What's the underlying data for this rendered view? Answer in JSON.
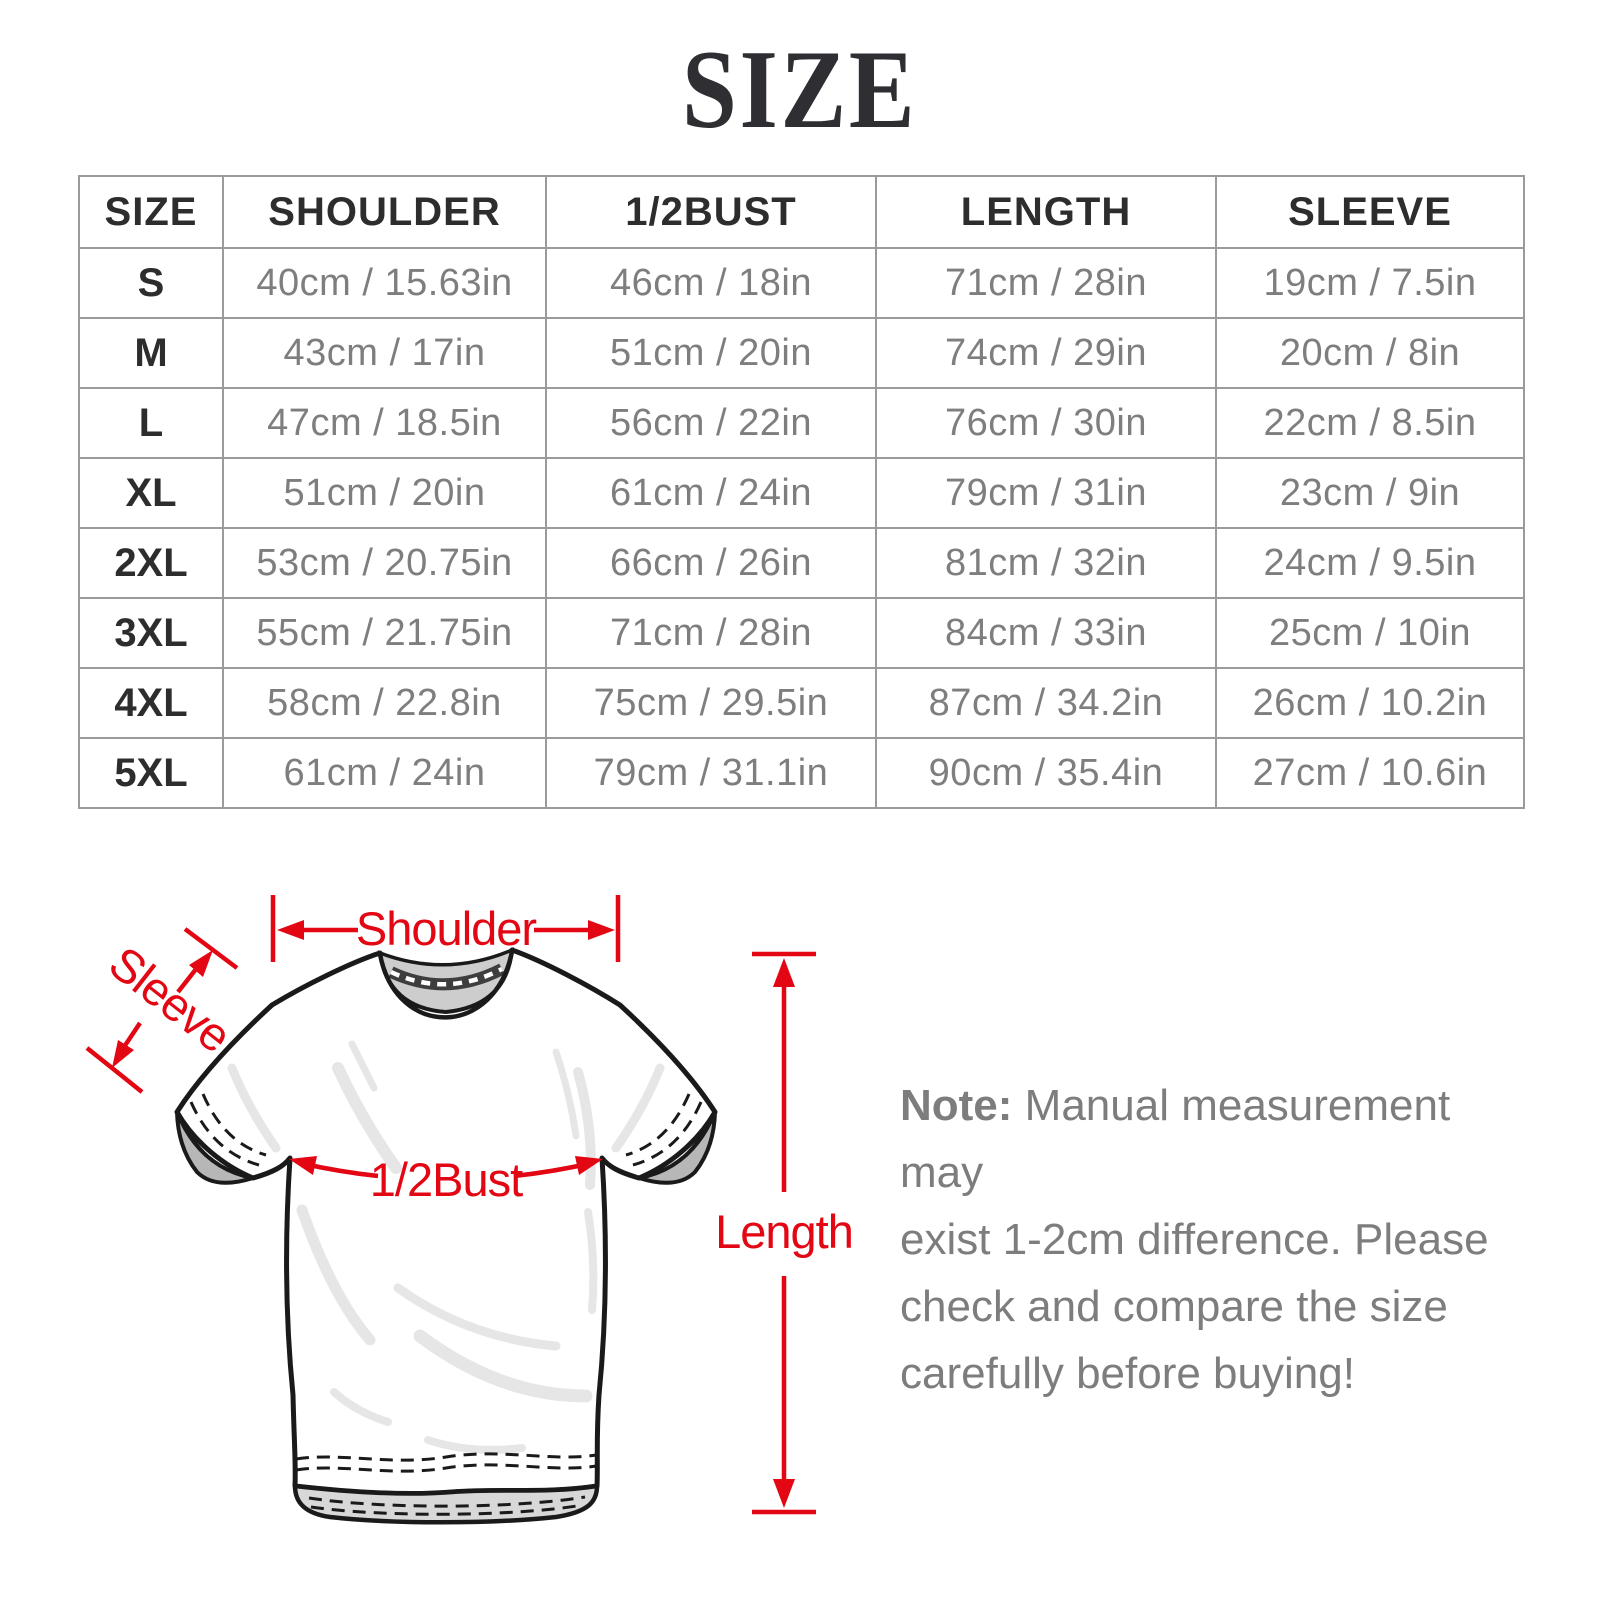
{
  "title": "SIZE",
  "palette": {
    "accent_red": "#e30613",
    "table_border": "#9b9b9b",
    "header_text": "#2d2d2d",
    "cell_text": "#7e7e7e",
    "note_text": "#7d7d7d",
    "shirt_outline": "#1a1a1a",
    "collar_gray": "#cdcdcd",
    "cuff_gray": "#b7b7b7",
    "hem_gray": "#d8d8d8"
  },
  "table": {
    "columns": [
      "SIZE",
      "SHOULDER",
      "1/2BUST",
      "LENGTH",
      "SLEEVE"
    ],
    "rows": [
      {
        "size": "S",
        "values": [
          "40cm / 15.63in",
          "46cm / 18in",
          "71cm / 28in",
          "19cm / 7.5in"
        ]
      },
      {
        "size": "M",
        "values": [
          "43cm / 17in",
          "51cm / 20in",
          "74cm / 29in",
          "20cm / 8in"
        ]
      },
      {
        "size": "L",
        "values": [
          "47cm / 18.5in",
          "56cm / 22in",
          "76cm / 30in",
          "22cm / 8.5in"
        ]
      },
      {
        "size": "XL",
        "values": [
          "51cm / 20in",
          "61cm / 24in",
          "79cm / 31in",
          "23cm / 9in"
        ]
      },
      {
        "size": "2XL",
        "values": [
          "53cm / 20.75in",
          "66cm / 26in",
          "81cm / 32in",
          "24cm / 9.5in"
        ]
      },
      {
        "size": "3XL",
        "values": [
          "55cm / 21.75in",
          "71cm / 28in",
          "84cm / 33in",
          "25cm / 10in"
        ]
      },
      {
        "size": "4XL",
        "values": [
          "58cm / 22.8in",
          "75cm / 29.5in",
          "87cm / 34.2in",
          "26cm / 10.2in"
        ]
      },
      {
        "size": "5XL",
        "values": [
          "61cm / 24in",
          "79cm / 31.1in",
          "90cm / 35.4in",
          "27cm / 10.6in"
        ]
      }
    ]
  },
  "diagram": {
    "labels": {
      "shoulder": "Shoulder",
      "sleeve": "Sleeve",
      "half_bust": "1/2Bust",
      "length": "Length"
    }
  },
  "note": {
    "prefix": "Note:",
    "line1": "Manual measurement may",
    "line2": "exist 1-2cm difference. Please",
    "line3": "check and compare the size",
    "line4": "carefully before buying!"
  }
}
